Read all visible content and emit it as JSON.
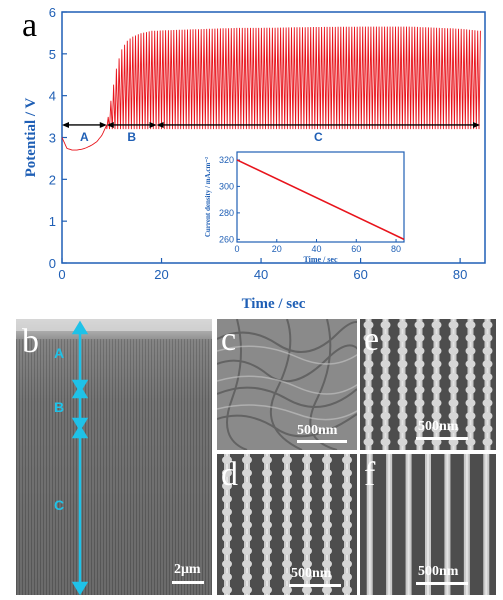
{
  "chart_data": [
    {
      "type": "line",
      "panel_label": "a",
      "xlabel": "Time / sec",
      "ylabel": "Potential / V",
      "xlim": [
        0,
        85
      ],
      "ylim": [
        0,
        6
      ],
      "xticks": [
        "0",
        "20",
        "40",
        "60",
        "80"
      ],
      "yticks": [
        "0",
        "1",
        "2",
        "3",
        "4",
        "5",
        "6"
      ],
      "color": "#e8141c",
      "series": [
        {
          "description": "pulsed potential transient",
          "x": [
            0,
            1,
            2,
            3,
            4,
            5,
            6,
            7,
            8,
            9,
            10,
            11,
            12,
            13,
            14,
            15,
            16,
            17,
            18,
            19,
            20,
            25,
            30,
            35,
            40,
            50,
            60,
            70,
            80,
            84
          ],
          "y_max": [
            3.0,
            2.74,
            2.7,
            2.7,
            2.72,
            2.76,
            2.82,
            2.9,
            3.05,
            3.3,
            4.0,
            4.7,
            5.1,
            5.3,
            5.4,
            5.45,
            5.5,
            5.52,
            5.55,
            5.55,
            5.56,
            5.58,
            5.6,
            5.62,
            5.62,
            5.64,
            5.65,
            5.65,
            5.6,
            5.55
          ],
          "y_min": 3.2
        }
      ],
      "regions": [
        {
          "label": "A",
          "x_start": 0,
          "x_end": 9
        },
        {
          "label": "B",
          "x_start": 9,
          "x_end": 19
        },
        {
          "label": "C",
          "x_start": 19,
          "x_end": 84
        }
      ],
      "region_line_y": 3.3
    },
    {
      "type": "line",
      "inset": true,
      "xlabel": "Time / sec",
      "ylabel": "Current density / mA.cm⁻²",
      "xlim": [
        0,
        84
      ],
      "ylim": [
        258,
        326
      ],
      "xticks": [
        "0",
        "20",
        "40",
        "60",
        "80"
      ],
      "yticks": [
        "260",
        "280",
        "300",
        "320"
      ],
      "x": [
        0,
        84
      ],
      "y": [
        320,
        260
      ],
      "color": "#e8141c"
    }
  ],
  "micrographs": {
    "b": {
      "label": "b",
      "scale": "2μm",
      "segments": [
        "A",
        "B",
        "C"
      ]
    },
    "c": {
      "label": "c",
      "scale": "500nm"
    },
    "d": {
      "label": "d",
      "scale": "500nm"
    },
    "e": {
      "label": "e",
      "scale": "500nm"
    },
    "f": {
      "label": "f",
      "scale": "500nm"
    }
  }
}
